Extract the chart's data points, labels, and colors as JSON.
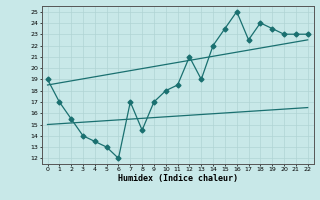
{
  "xlabel": "Humidex (Indice chaleur)",
  "x_ticks": [
    0,
    1,
    2,
    3,
    4,
    5,
    6,
    7,
    8,
    9,
    10,
    11,
    12,
    13,
    14,
    15,
    16,
    17,
    18,
    19,
    20,
    21,
    22
  ],
  "xlim": [
    -0.5,
    22.5
  ],
  "ylim": [
    11.5,
    25.5
  ],
  "y_ticks": [
    12,
    13,
    14,
    15,
    16,
    17,
    18,
    19,
    20,
    21,
    22,
    23,
    24,
    25
  ],
  "line1": {
    "x": [
      0,
      1,
      2,
      3,
      4,
      5,
      6,
      7,
      8,
      9,
      10,
      11,
      12,
      13,
      14,
      15,
      16,
      17,
      18,
      19,
      20,
      21,
      22
    ],
    "y": [
      19,
      17,
      15.5,
      14,
      13.5,
      13,
      12,
      17,
      14.5,
      17,
      18,
      18.5,
      21,
      19,
      22,
      23.5,
      25,
      22.5,
      24,
      23.5,
      23,
      23,
      23
    ],
    "color": "#1a7070",
    "marker": "D",
    "markersize": 2.5,
    "linewidth": 0.9
  },
  "line2": {
    "x": [
      0,
      22
    ],
    "y": [
      18.5,
      22.5
    ],
    "color": "#1a7070",
    "linewidth": 0.9
  },
  "line3": {
    "x": [
      0,
      22
    ],
    "y": [
      15.0,
      16.5
    ],
    "color": "#1a7070",
    "linewidth": 0.9
  },
  "bg_color": "#c8e8e8",
  "grid_color": "#b0d4d4"
}
